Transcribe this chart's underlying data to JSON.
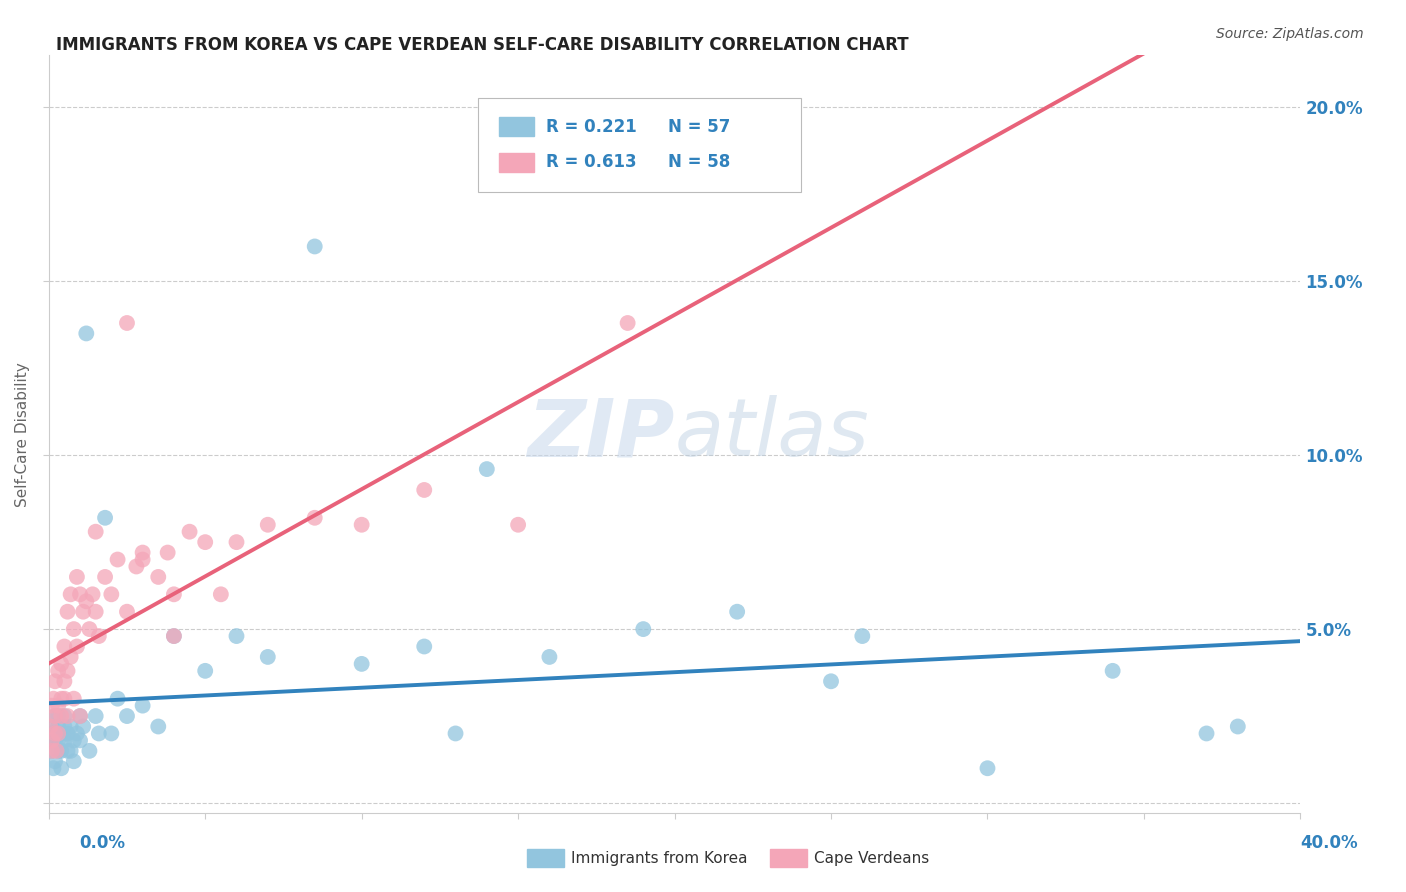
{
  "title": "IMMIGRANTS FROM KOREA VS CAPE VERDEAN SELF-CARE DISABILITY CORRELATION CHART",
  "source": "Source: ZipAtlas.com",
  "ylabel": "Self-Care Disability",
  "xlim": [
    0.0,
    0.4
  ],
  "ylim": [
    -0.003,
    0.215
  ],
  "color_blue": "#92c5de",
  "color_pink": "#f4a6b8",
  "color_blue_line": "#3182bd",
  "color_pink_line": "#e8627a",
  "color_blue_text": "#3182bd",
  "background_color": "#ffffff",
  "grid_color": "#cccccc",
  "korea_x": [
    0.0005,
    0.001,
    0.001,
    0.001,
    0.0015,
    0.002,
    0.002,
    0.002,
    0.0025,
    0.003,
    0.003,
    0.003,
    0.003,
    0.004,
    0.004,
    0.004,
    0.005,
    0.005,
    0.005,
    0.006,
    0.006,
    0.007,
    0.007,
    0.008,
    0.008,
    0.009,
    0.01,
    0.01,
    0.011,
    0.012,
    0.013,
    0.015,
    0.016,
    0.018,
    0.02,
    0.022,
    0.025,
    0.03,
    0.035,
    0.04,
    0.05,
    0.06,
    0.07,
    0.085,
    0.1,
    0.12,
    0.14,
    0.16,
    0.19,
    0.22,
    0.26,
    0.3,
    0.34,
    0.37,
    0.13,
    0.25,
    0.38
  ],
  "korea_y": [
    0.02,
    0.015,
    0.018,
    0.022,
    0.01,
    0.012,
    0.025,
    0.018,
    0.02,
    0.022,
    0.015,
    0.025,
    0.018,
    0.02,
    0.015,
    0.01,
    0.022,
    0.018,
    0.025,
    0.015,
    0.02,
    0.015,
    0.022,
    0.018,
    0.012,
    0.02,
    0.025,
    0.018,
    0.022,
    0.135,
    0.015,
    0.025,
    0.02,
    0.082,
    0.02,
    0.03,
    0.025,
    0.028,
    0.022,
    0.048,
    0.038,
    0.048,
    0.042,
    0.16,
    0.04,
    0.045,
    0.096,
    0.042,
    0.05,
    0.055,
    0.048,
    0.01,
    0.038,
    0.02,
    0.02,
    0.035,
    0.022
  ],
  "capeverde_x": [
    0.0005,
    0.001,
    0.001,
    0.001,
    0.0015,
    0.002,
    0.002,
    0.002,
    0.0025,
    0.003,
    0.003,
    0.003,
    0.004,
    0.004,
    0.004,
    0.005,
    0.005,
    0.005,
    0.006,
    0.006,
    0.006,
    0.007,
    0.007,
    0.008,
    0.008,
    0.009,
    0.009,
    0.01,
    0.01,
    0.011,
    0.012,
    0.013,
    0.014,
    0.015,
    0.016,
    0.018,
    0.02,
    0.022,
    0.025,
    0.028,
    0.03,
    0.035,
    0.038,
    0.04,
    0.045,
    0.05,
    0.055,
    0.06,
    0.07,
    0.085,
    0.1,
    0.12,
    0.15,
    0.185,
    0.015,
    0.025,
    0.04,
    0.03
  ],
  "capeverde_y": [
    0.022,
    0.018,
    0.028,
    0.015,
    0.03,
    0.02,
    0.025,
    0.035,
    0.015,
    0.028,
    0.038,
    0.02,
    0.03,
    0.04,
    0.025,
    0.03,
    0.045,
    0.035,
    0.038,
    0.055,
    0.025,
    0.042,
    0.06,
    0.05,
    0.03,
    0.045,
    0.065,
    0.025,
    0.06,
    0.055,
    0.058,
    0.05,
    0.06,
    0.055,
    0.048,
    0.065,
    0.06,
    0.07,
    0.055,
    0.068,
    0.07,
    0.065,
    0.072,
    0.06,
    0.078,
    0.075,
    0.06,
    0.075,
    0.08,
    0.082,
    0.08,
    0.09,
    0.08,
    0.138,
    0.078,
    0.138,
    0.048,
    0.072
  ]
}
